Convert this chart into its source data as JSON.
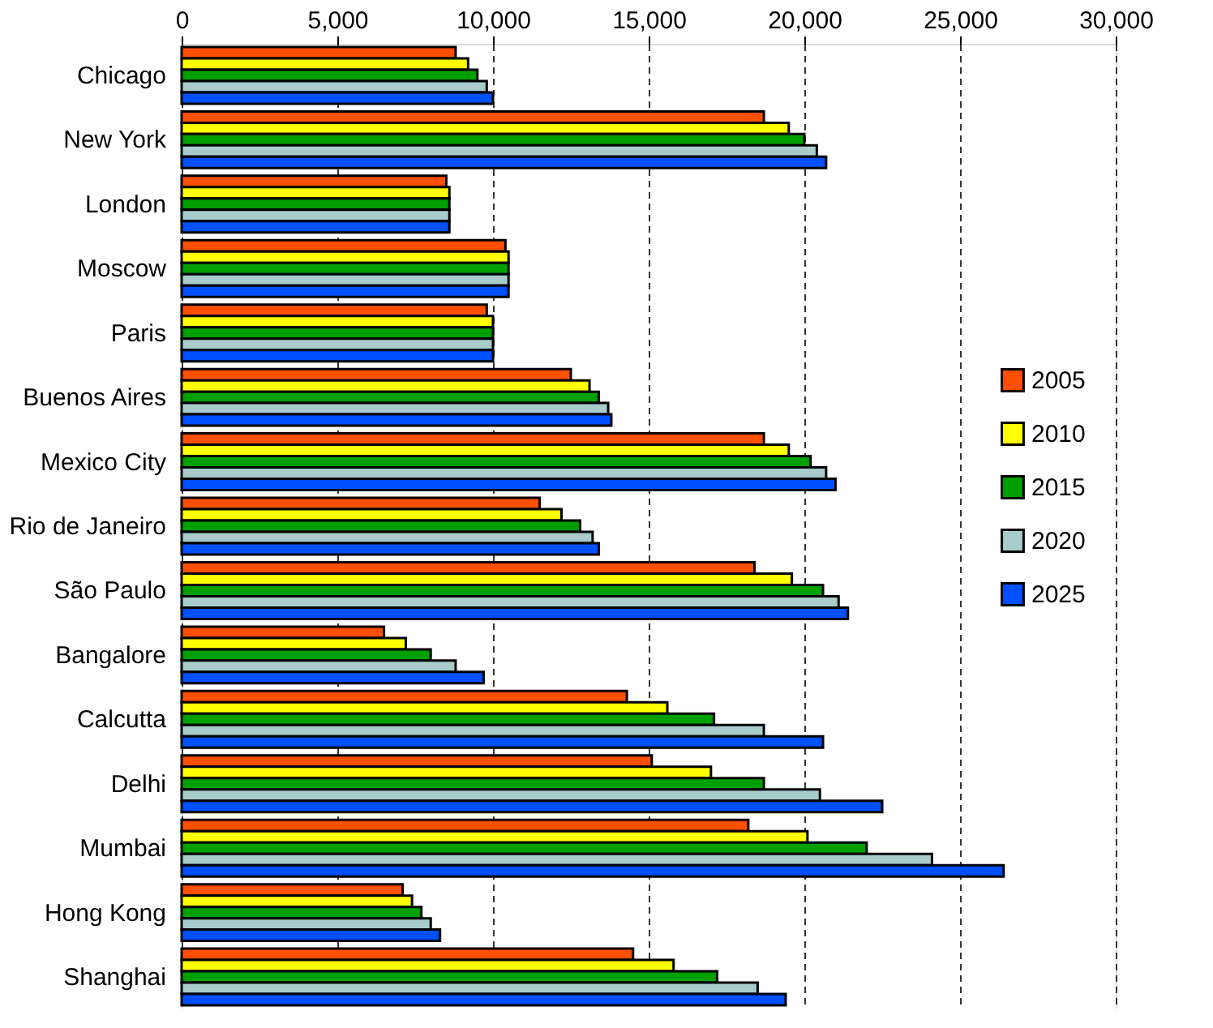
{
  "chart_data": {
    "type": "bar",
    "orientation": "horizontal",
    "categories": [
      "Chicago",
      "New York",
      "London",
      "Moscow",
      "Paris",
      "Buenos Aires",
      "Mexico City",
      "Rio de Janeiro",
      "São Paulo",
      "Bangalore",
      "Calcutta",
      "Delhi",
      "Mumbai",
      "Hong Kong",
      "Shanghai"
    ],
    "series": [
      {
        "name": "2005",
        "color": "#ff4f00",
        "values": [
          8800,
          18700,
          8500,
          10400,
          9800,
          12500,
          18700,
          11500,
          18400,
          6500,
          14300,
          15100,
          18200,
          7100,
          14500
        ]
      },
      {
        "name": "2010",
        "color": "#ffff00",
        "values": [
          9200,
          19500,
          8600,
          10500,
          10000,
          13100,
          19500,
          12200,
          19600,
          7200,
          15600,
          17000,
          20100,
          7400,
          15800
        ]
      },
      {
        "name": "2015",
        "color": "#00a000",
        "values": [
          9500,
          20000,
          8600,
          10500,
          10000,
          13400,
          20200,
          12800,
          20600,
          8000,
          17100,
          18700,
          22000,
          7700,
          17200
        ]
      },
      {
        "name": "2020",
        "color": "#a8cccc",
        "values": [
          9800,
          20400,
          8600,
          10500,
          10000,
          13700,
          20700,
          13200,
          21100,
          8800,
          18700,
          20500,
          24100,
          8000,
          18500
        ]
      },
      {
        "name": "2025",
        "color": "#0050ff",
        "values": [
          10000,
          20700,
          8600,
          10500,
          10000,
          13800,
          21000,
          13400,
          21400,
          9700,
          20600,
          22500,
          26400,
          8300,
          19400
        ]
      }
    ],
    "xlim": [
      0,
      30000
    ],
    "xticks": [
      0,
      {
        "value": 5000,
        "label": "5,000"
      },
      {
        "value": 10000,
        "label": "10,000"
      },
      {
        "value": 15000,
        "label": "15,000"
      },
      {
        "value": 20000,
        "label": "20,000"
      },
      {
        "value": 25000,
        "label": "25,000"
      },
      {
        "value": 30000,
        "label": "30,000"
      }
    ],
    "grid": "x",
    "legend": "right"
  }
}
